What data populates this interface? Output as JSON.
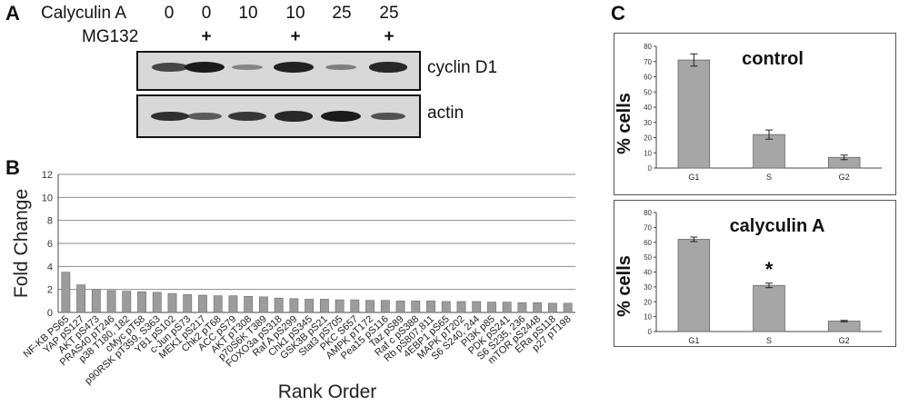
{
  "panels": {
    "a": "A",
    "b": "B",
    "c": "C"
  },
  "panel_a": {
    "row1_label": "Calyculin A",
    "row2_label": "MG132",
    "calyculin_values": [
      "0",
      "0",
      "10",
      "10",
      "25",
      "25"
    ],
    "mg132_values": [
      "",
      "+",
      "",
      "+",
      "",
      "+"
    ],
    "blots": [
      {
        "label": "cyclin D1",
        "band_intensity": [
          0.7,
          1.0,
          0.25,
          0.95,
          0.3,
          0.9
        ]
      },
      {
        "label": "actin",
        "band_intensity": [
          0.85,
          0.55,
          0.8,
          0.9,
          1.0,
          0.6
        ]
      }
    ]
  },
  "chart_data": [
    {
      "type": "bar",
      "panel": "B",
      "xlabel": "Rank Order",
      "ylabel": "Fold Change",
      "ylim": [
        0,
        12
      ],
      "yticks": [
        0,
        2,
        4,
        6,
        8,
        10,
        12
      ],
      "grid": true,
      "categories": [
        "NF-KB PS65",
        "YAP pS127",
        "AKT pS473",
        "PRAS40 pT246",
        "p38 T180, 182",
        "cMyc pT58",
        "p90RSK pT359, S363",
        "YB1 pS102",
        "c-Jun pS73",
        "MEK1 pS217",
        "Chk2 pT68",
        "ACC pS79",
        "AKT pT308",
        "p70S6K T389",
        "FOXO3a pS318",
        "Raf A pS299",
        "Chk1 pS345",
        "GSK3B pS21",
        "Stat3 pS705",
        "PKC S657",
        "AMPK pT172",
        "Pea15 pS116",
        "Taz pS89",
        "Raf c pS388",
        "Rb pS807,811",
        "4EBP1 pS65",
        "MAPK pT202",
        "S6 S240, 244",
        "PI3K p85",
        "PDK pS241",
        "S6 S235, 236",
        "mTOR pS2448",
        "ERa pS118",
        "p27 pT198"
      ],
      "values": [
        3.5,
        2.4,
        2.0,
        1.9,
        1.85,
        1.8,
        1.75,
        1.65,
        1.55,
        1.5,
        1.45,
        1.45,
        1.4,
        1.35,
        1.25,
        1.2,
        1.15,
        1.15,
        1.1,
        1.1,
        1.05,
        1.05,
        1.0,
        1.0,
        1.0,
        0.95,
        0.95,
        0.95,
        0.9,
        0.9,
        0.85,
        0.85,
        0.8,
        0.8
      ]
    },
    {
      "type": "bar",
      "panel": "C",
      "title": "control",
      "ylabel": "% cells",
      "ylim": [
        0,
        80
      ],
      "yticks": [
        0,
        10,
        20,
        30,
        40,
        50,
        60,
        70,
        80
      ],
      "categories": [
        "G1",
        "S",
        "G2"
      ],
      "values": [
        71,
        22,
        7
      ],
      "errors": [
        4,
        3,
        1.5
      ],
      "annotations": []
    },
    {
      "type": "bar",
      "panel": "C",
      "title": "calyculin A",
      "ylabel": "% cells",
      "ylim": [
        0,
        80
      ],
      "yticks": [
        0,
        10,
        20,
        30,
        40,
        50,
        60,
        70,
        80
      ],
      "categories": [
        "G1",
        "S",
        "G2"
      ],
      "values": [
        62,
        31,
        7
      ],
      "errors": [
        1.5,
        1.5,
        0.5
      ],
      "annotations": [
        "",
        "*",
        ""
      ]
    }
  ]
}
